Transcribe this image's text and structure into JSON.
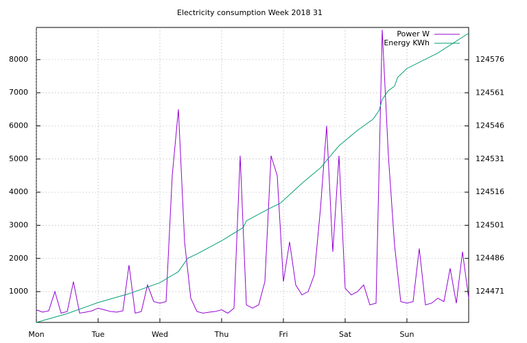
{
  "chart_data": {
    "type": "line",
    "title": "Electricity consumption Week 2018 31",
    "xlim": [
      0,
      7
    ],
    "xticks": [
      {
        "value": 0,
        "label": "Mon"
      },
      {
        "value": 1,
        "label": "Tue"
      },
      {
        "value": 2,
        "label": "Wed"
      },
      {
        "value": 3,
        "label": "Thu"
      },
      {
        "value": 4,
        "label": "Fri"
      },
      {
        "value": 5,
        "label": "Sat"
      },
      {
        "value": 6,
        "label": "Sun"
      }
    ],
    "ylim": [
      70,
      8970
    ],
    "yticks": [
      1000,
      2000,
      3000,
      4000,
      5000,
      6000,
      7000,
      8000
    ],
    "y2lim": [
      124457,
      124590.6
    ],
    "y2ticks": [
      124471,
      124486,
      124501,
      124516,
      124531,
      124546,
      124561,
      124576
    ],
    "grid": true,
    "legend": "top-right",
    "series": [
      {
        "name": "Power W",
        "color": "#9400d3",
        "axis": "y",
        "x": [
          0,
          0.1,
          0.2,
          0.3,
          0.4,
          0.5,
          0.6,
          0.7,
          0.8,
          0.9,
          1,
          1.1,
          1.2,
          1.3,
          1.4,
          1.5,
          1.6,
          1.7,
          1.8,
          1.9,
          2,
          2.1,
          2.2,
          2.3,
          2.4,
          2.5,
          2.6,
          2.7,
          2.8,
          2.9,
          3,
          3.1,
          3.2,
          3.3,
          3.4,
          3.5,
          3.6,
          3.7,
          3.8,
          3.9,
          4,
          4.1,
          4.2,
          4.3,
          4.4,
          4.5,
          4.6,
          4.7,
          4.8,
          4.9,
          5,
          5.1,
          5.2,
          5.3,
          5.4,
          5.5,
          5.6,
          5.7,
          5.8,
          5.9,
          6,
          6.1,
          6.2,
          6.3,
          6.4,
          6.5,
          6.6,
          6.7,
          6.8,
          6.9,
          7
        ],
        "values": [
          450,
          380,
          420,
          1000,
          350,
          400,
          1300,
          350,
          380,
          420,
          500,
          450,
          400,
          380,
          420,
          1800,
          350,
          400,
          1200,
          700,
          650,
          700,
          4500,
          6500,
          2500,
          800,
          400,
          350,
          380,
          400,
          450,
          350,
          500,
          5100,
          600,
          500,
          600,
          1300,
          5100,
          4500,
          1300,
          2500,
          1200,
          900,
          1000,
          1500,
          3500,
          6000,
          2200,
          5100,
          1100,
          900,
          1000,
          1200,
          600,
          650,
          8900,
          5100,
          2400,
          700,
          650,
          700,
          2300,
          600,
          650,
          800,
          700,
          1700,
          650,
          2200,
          800
        ]
      },
      {
        "name": "Energy KWh",
        "color": "#009e73",
        "axis": "y2",
        "x": [
          0,
          0.5,
          1,
          1.5,
          2,
          2.3,
          2.45,
          2.6,
          3,
          3.35,
          3.4,
          3.8,
          3.95,
          4.3,
          4.6,
          4.75,
          4.9,
          5.2,
          5.45,
          5.55,
          5.6,
          5.7,
          5.8,
          5.85,
          6,
          6.5,
          7
        ],
        "values": [
          124457,
          124461,
          124466,
          124470,
          124475,
          124480,
          124486,
          124488,
          124494,
          124500,
          124503,
          124509,
          124511,
          124520,
          124527,
          124532,
          124537,
          124544,
          124549,
          124553,
          124558,
          124562,
          124564,
          124568,
          124572,
          124579,
          124588
        ]
      }
    ]
  }
}
